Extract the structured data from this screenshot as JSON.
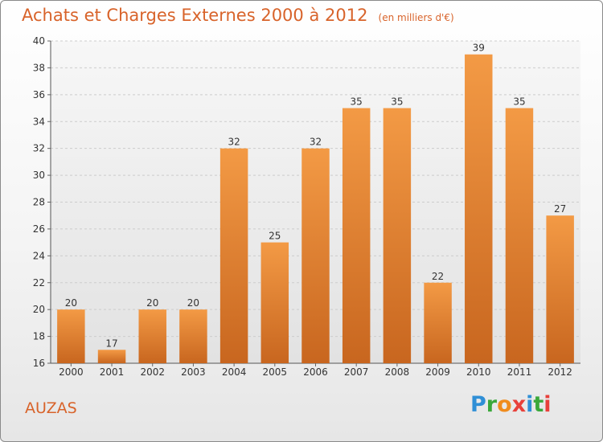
{
  "title": "Achats et Charges Externes 2000 à 2012",
  "unit_note": "(en milliers d'€)",
  "town": "AUZAS",
  "logo": {
    "letters": [
      "P",
      "r",
      "o",
      "x",
      "i",
      "t",
      "i"
    ],
    "colors": [
      "#2f8fd6",
      "#3aa83a",
      "#f08c1e",
      "#e8403a",
      "#2f8fd6",
      "#3aa83a",
      "#e8403a"
    ]
  },
  "colors": {
    "bar": "#f39a45",
    "bar_dark": "#c8661f",
    "title": "#d8632a",
    "grid": "#cccccc"
  },
  "chart_data": {
    "type": "bar",
    "categories": [
      "2000",
      "2001",
      "2002",
      "2003",
      "2004",
      "2005",
      "2006",
      "2007",
      "2008",
      "2009",
      "2010",
      "2011",
      "2012"
    ],
    "values": [
      20,
      17,
      20,
      20,
      32,
      25,
      32,
      35,
      35,
      22,
      39,
      35,
      27
    ],
    "data_labels": [
      "20",
      "17",
      "20",
      "20",
      "32",
      "25",
      "32",
      "35",
      "35",
      "22",
      "39",
      "35",
      "27"
    ],
    "ylim": [
      16,
      40
    ],
    "yticks": [
      16,
      18,
      20,
      22,
      24,
      26,
      28,
      30,
      32,
      34,
      36,
      38,
      40
    ],
    "grid": true
  }
}
